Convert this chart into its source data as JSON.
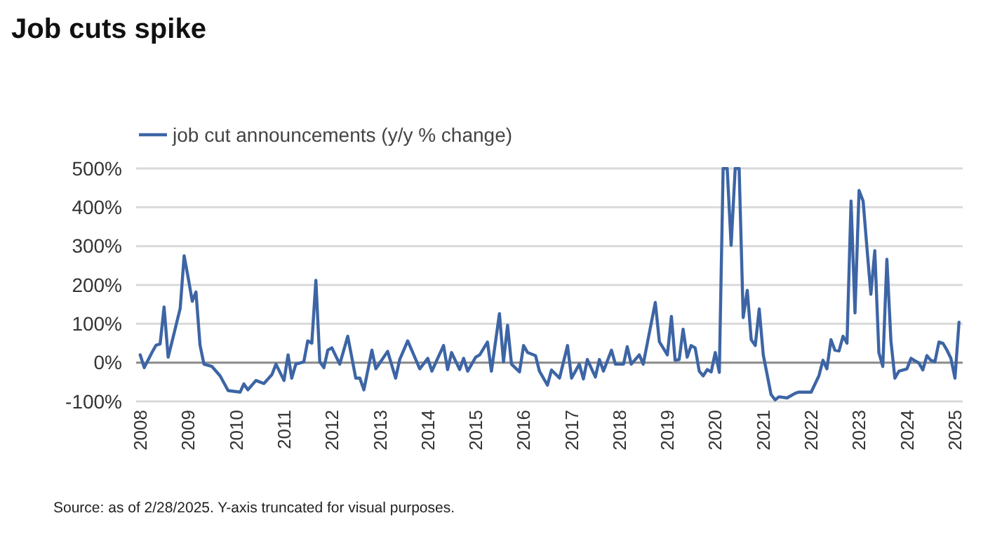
{
  "chart_data": {
    "type": "line",
    "title": "Job cuts spike",
    "x": [
      "2008-01",
      "2008-02",
      "2008-04",
      "2008-05",
      "2008-06",
      "2008-07",
      "2008-08",
      "2008-09",
      "2008-11",
      "2008-12",
      "2009-01",
      "2009-02",
      "2009-03",
      "2009-04",
      "2009-05",
      "2009-07",
      "2009-09",
      "2009-11",
      "2010-02",
      "2010-03",
      "2010-04",
      "2010-06",
      "2010-08",
      "2010-10",
      "2010-11",
      "2011-01",
      "2011-02",
      "2011-03",
      "2011-04",
      "2011-06",
      "2011-07",
      "2011-08",
      "2011-09",
      "2011-10",
      "2011-11",
      "2011-12",
      "2012-01",
      "2012-03",
      "2012-05",
      "2012-07",
      "2012-08",
      "2012-09",
      "2012-11",
      "2012-12",
      "2013-03",
      "2013-05",
      "2013-06",
      "2013-08",
      "2013-11",
      "2014-01",
      "2014-02",
      "2014-05",
      "2014-06",
      "2014-07",
      "2014-09",
      "2014-10",
      "2014-11",
      "2015-01",
      "2015-02",
      "2015-04",
      "2015-05",
      "2015-07",
      "2015-08",
      "2015-09",
      "2015-10",
      "2015-12",
      "2016-01",
      "2016-02",
      "2016-04",
      "2016-05",
      "2016-07",
      "2016-08",
      "2016-10",
      "2016-12",
      "2017-01",
      "2017-03",
      "2017-04",
      "2017-05",
      "2017-07",
      "2017-08",
      "2017-09",
      "2017-11",
      "2017-12",
      "2018-02",
      "2018-03",
      "2018-04",
      "2018-06",
      "2018-07",
      "2018-10",
      "2018-11",
      "2019-01",
      "2019-02",
      "2019-03",
      "2019-04",
      "2019-05",
      "2019-06",
      "2019-07",
      "2019-08",
      "2019-09",
      "2019-10",
      "2019-11",
      "2019-12",
      "2020-01",
      "2020-02",
      "2020-03",
      "2020-04",
      "2020-05",
      "2020-06",
      "2020-07",
      "2020-08",
      "2020-09",
      "2020-10",
      "2020-11",
      "2020-12",
      "2021-01",
      "2021-03",
      "2021-04",
      "2021-05",
      "2021-07",
      "2021-09",
      "2021-10",
      "2022-01",
      "2022-03",
      "2022-04",
      "2022-05",
      "2022-06",
      "2022-07",
      "2022-08",
      "2022-09",
      "2022-10",
      "2022-11",
      "2022-12",
      "2023-01",
      "2023-02",
      "2023-03",
      "2023-04",
      "2023-05",
      "2023-06",
      "2023-07",
      "2023-08",
      "2023-09",
      "2023-10",
      "2023-11",
      "2024-01",
      "2024-02",
      "2024-03",
      "2024-04",
      "2024-05",
      "2024-06",
      "2024-07",
      "2024-08",
      "2024-09",
      "2024-10",
      "2024-11",
      "2024-12",
      "2025-01",
      "2025-02"
    ],
    "series": [
      {
        "name": "job cut announcements (y/y % change)",
        "color": "#3d65a5",
        "values": [
          20,
          -13,
          27,
          45,
          48,
          143,
          14,
          56,
          140,
          275,
          218,
          158,
          182,
          45,
          -4,
          -10,
          -34,
          -72,
          -76,
          -55,
          -70,
          -46,
          -54,
          -31,
          -4,
          -46,
          20,
          -40,
          -4,
          2,
          56,
          50,
          212,
          2,
          -13,
          32,
          38,
          -4,
          68,
          -40,
          -40,
          -70,
          32,
          -16,
          29,
          -40,
          8,
          56,
          -16,
          11,
          -22,
          44,
          -18,
          26,
          -18,
          11,
          -22,
          14,
          20,
          53,
          -22,
          126,
          2,
          96,
          -4,
          -24,
          44,
          26,
          18,
          -22,
          -58,
          -19,
          -40,
          44,
          -40,
          -4,
          -42,
          8,
          -37,
          8,
          -22,
          32,
          -4,
          -4,
          41,
          -4,
          20,
          -4,
          155,
          54,
          20,
          119,
          6,
          8,
          86,
          14,
          44,
          38,
          -22,
          -34,
          -18,
          -24,
          26,
          -25,
          500,
          500,
          302,
          500,
          500,
          116,
          186,
          59,
          44,
          138,
          20,
          -82,
          -96,
          -88,
          -91,
          -79,
          -76,
          -76,
          -34,
          6,
          -16,
          59,
          32,
          30,
          68,
          50,
          416,
          128,
          443,
          416,
          300,
          176,
          288,
          26,
          -10,
          266,
          56,
          -40,
          -22,
          -16,
          11,
          5,
          -1,
          -19,
          18,
          6,
          2,
          53,
          50,
          32,
          11,
          -40,
          104
        ]
      }
    ],
    "xlim": [
      "2007-12",
      "2025-03"
    ],
    "xticks": [
      "2008",
      "2009",
      "2010",
      "2011",
      "2012",
      "2013",
      "2014",
      "2015",
      "2016",
      "2017",
      "2018",
      "2019",
      "2020",
      "2021",
      "2022",
      "2023",
      "2024",
      "2025"
    ],
    "ylim": [
      -100,
      500
    ],
    "yticks": [
      {
        "value": -100,
        "label": "-100%"
      },
      {
        "value": 0,
        "label": "0%"
      },
      {
        "value": 100,
        "label": "100%"
      },
      {
        "value": 200,
        "label": "200%"
      },
      {
        "value": 300,
        "label": "300%"
      },
      {
        "value": 400,
        "label": "400%"
      },
      {
        "value": 500,
        "label": "500%"
      }
    ],
    "ref_lines": [
      {
        "axis": "y",
        "value": 0,
        "color": "#8c8c8c"
      }
    ],
    "grid": "y",
    "legend": "top left",
    "marker": "none",
    "line_style": "solid",
    "annotations": [
      "Source: as of 2/28/2025. Y-axis truncated for visual purposes."
    ]
  }
}
